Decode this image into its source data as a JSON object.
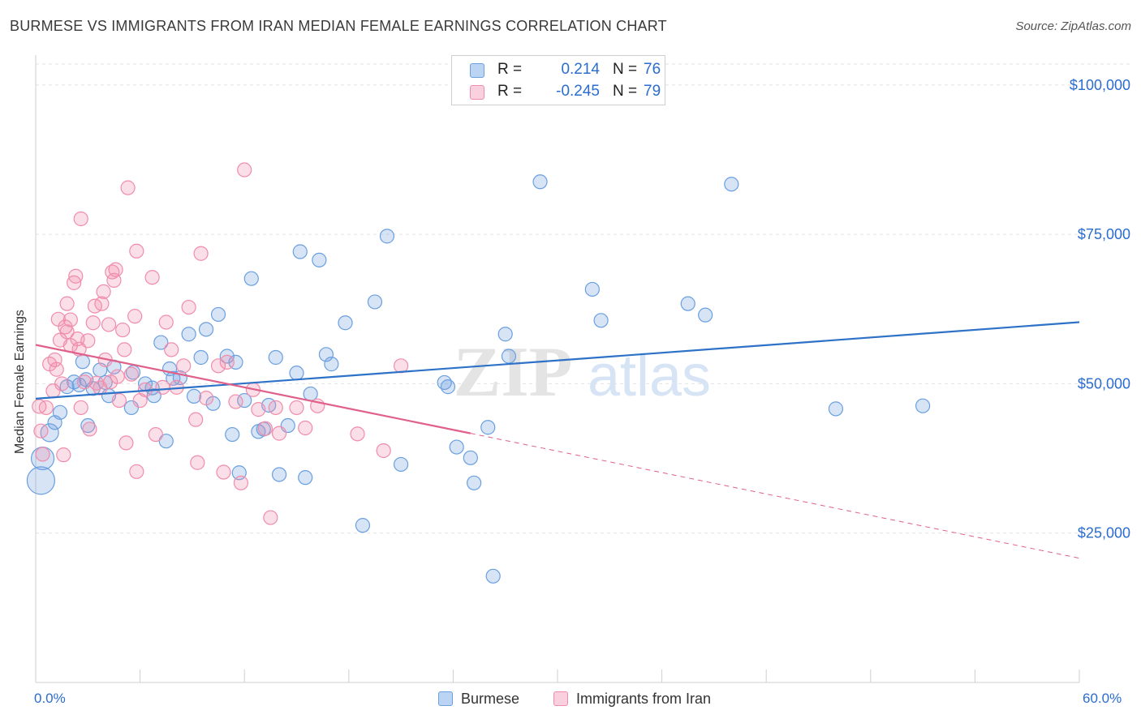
{
  "title": "BURMESE VS IMMIGRANTS FROM IRAN MEDIAN FEMALE EARNINGS CORRELATION CHART",
  "source": "Source: ZipAtlas.com",
  "watermark": {
    "zip": "ZIP",
    "atlas": "atlas"
  },
  "legend_top": [
    {
      "r_label": "R =",
      "r_value": "0.214",
      "n_label": "N =",
      "n_value": "76"
    },
    {
      "r_label": "R =",
      "r_value": "-0.245",
      "n_label": "N =",
      "n_value": "79"
    }
  ],
  "legend_bottom": [
    "Burmese",
    "Immigrants from Iran"
  ],
  "x_min_label": "0.0%",
  "x_max_label": "60.0%",
  "chart_data": {
    "type": "scatter",
    "title": "BURMESE VS IMMIGRANTS FROM IRAN MEDIAN FEMALE EARNINGS CORRELATION CHART",
    "xlabel": "",
    "ylabel": "Median Female Earnings",
    "xlim": [
      0,
      60
    ],
    "ylim": [
      0,
      105000
    ],
    "y_ticks": [
      25000,
      50000,
      75000,
      100000
    ],
    "y_tick_labels": [
      "$25,000",
      "$50,000",
      "$75,000",
      "$100,000"
    ],
    "x_tick_labels": [
      "0.0%",
      "60.0%"
    ],
    "grid": true,
    "legend_position": "top-center and bottom",
    "colors": {
      "burmese": "#6a9fe0",
      "iran": "#f08cab",
      "burmese_line": "#2e72c8",
      "iran_line": "#e0608a"
    },
    "series": [
      {
        "name": "Burmese",
        "color": "#6a9fe0",
        "trend": {
          "x": [
            0,
            60
          ],
          "y": [
            47500,
            60300
          ],
          "dashed_from": null
        },
        "points": [
          [
            0.3,
            33800
          ],
          [
            0.4,
            37500
          ],
          [
            0.8,
            41800
          ],
          [
            1.1,
            43500
          ],
          [
            1.4,
            45200
          ],
          [
            1.8,
            49500
          ],
          [
            2.2,
            50300
          ],
          [
            2.5,
            49800
          ],
          [
            2.7,
            53700
          ],
          [
            2.9,
            50700
          ],
          [
            3.0,
            43000
          ],
          [
            3.3,
            49200
          ],
          [
            3.7,
            52300
          ],
          [
            4.0,
            50200
          ],
          [
            4.2,
            48000
          ],
          [
            4.5,
            52800
          ],
          [
            5.5,
            46000
          ],
          [
            5.6,
            51900
          ],
          [
            6.3,
            50000
          ],
          [
            6.7,
            49300
          ],
          [
            6.8,
            48000
          ],
          [
            7.2,
            56900
          ],
          [
            7.5,
            40400
          ],
          [
            7.7,
            52500
          ],
          [
            7.9,
            50900
          ],
          [
            8.3,
            51000
          ],
          [
            8.8,
            58300
          ],
          [
            9.1,
            47900
          ],
          [
            9.5,
            54400
          ],
          [
            9.8,
            59100
          ],
          [
            10.2,
            46700
          ],
          [
            10.5,
            61600
          ],
          [
            11.0,
            54600
          ],
          [
            11.3,
            41500
          ],
          [
            11.5,
            53600
          ],
          [
            11.7,
            35100
          ],
          [
            12.0,
            47200
          ],
          [
            12.4,
            67600
          ],
          [
            12.8,
            42000
          ],
          [
            13.1,
            42400
          ],
          [
            13.4,
            46400
          ],
          [
            13.8,
            54400
          ],
          [
            14.0,
            34800
          ],
          [
            14.5,
            43000
          ],
          [
            15.0,
            51800
          ],
          [
            15.2,
            72100
          ],
          [
            15.5,
            34300
          ],
          [
            15.8,
            48300
          ],
          [
            16.3,
            70700
          ],
          [
            16.7,
            54900
          ],
          [
            17.0,
            53300
          ],
          [
            17.8,
            60200
          ],
          [
            18.8,
            26300
          ],
          [
            19.5,
            63700
          ],
          [
            20.2,
            74700
          ],
          [
            21.0,
            36500
          ],
          [
            23.5,
            50200
          ],
          [
            23.7,
            49500
          ],
          [
            24.2,
            39400
          ],
          [
            25.0,
            37600
          ],
          [
            25.2,
            33400
          ],
          [
            26.0,
            42700
          ],
          [
            26.3,
            17800
          ],
          [
            27.0,
            58300
          ],
          [
            27.2,
            54600
          ],
          [
            29.0,
            83800
          ],
          [
            32.0,
            65800
          ],
          [
            32.5,
            60600
          ],
          [
            37.5,
            63400
          ],
          [
            38.5,
            61500
          ],
          [
            40.0,
            83400
          ],
          [
            46.0,
            45800
          ],
          [
            51.0,
            46300
          ]
        ]
      },
      {
        "name": "Immigrants from Iran",
        "color": "#f08cab",
        "trend": {
          "x": [
            0,
            25
          ],
          "y": [
            56500,
            41700
          ],
          "dashed_to": [
            60,
            20800
          ]
        },
        "points": [
          [
            0.2,
            46200
          ],
          [
            0.3,
            42100
          ],
          [
            0.4,
            38200
          ],
          [
            0.6,
            46000
          ],
          [
            0.8,
            53300
          ],
          [
            1.0,
            48800
          ],
          [
            1.1,
            54000
          ],
          [
            1.2,
            52400
          ],
          [
            1.3,
            60800
          ],
          [
            1.4,
            57300
          ],
          [
            1.5,
            50000
          ],
          [
            1.6,
            38100
          ],
          [
            1.7,
            59500
          ],
          [
            1.8,
            58700
          ],
          [
            1.8,
            63400
          ],
          [
            2.0,
            56400
          ],
          [
            2.0,
            60700
          ],
          [
            2.2,
            66900
          ],
          [
            2.3,
            68000
          ],
          [
            2.4,
            57500
          ],
          [
            2.5,
            55800
          ],
          [
            2.6,
            46000
          ],
          [
            2.6,
            77600
          ],
          [
            2.8,
            50300
          ],
          [
            3.0,
            57200
          ],
          [
            3.1,
            42400
          ],
          [
            3.3,
            60200
          ],
          [
            3.4,
            63000
          ],
          [
            3.5,
            50100
          ],
          [
            3.7,
            49300
          ],
          [
            3.8,
            63400
          ],
          [
            3.9,
            65400
          ],
          [
            4.0,
            54000
          ],
          [
            4.2,
            59900
          ],
          [
            4.3,
            50300
          ],
          [
            4.4,
            68700
          ],
          [
            4.5,
            67300
          ],
          [
            4.6,
            69100
          ],
          [
            4.7,
            51200
          ],
          [
            4.8,
            47200
          ],
          [
            5.0,
            59000
          ],
          [
            5.1,
            55700
          ],
          [
            5.2,
            40100
          ],
          [
            5.3,
            82800
          ],
          [
            5.5,
            51600
          ],
          [
            5.7,
            61300
          ],
          [
            5.8,
            35300
          ],
          [
            5.8,
            72200
          ],
          [
            6.0,
            47200
          ],
          [
            6.3,
            49000
          ],
          [
            6.7,
            67800
          ],
          [
            6.9,
            41500
          ],
          [
            7.3,
            49400
          ],
          [
            7.5,
            60300
          ],
          [
            7.8,
            55700
          ],
          [
            8.1,
            49400
          ],
          [
            8.5,
            53000
          ],
          [
            8.8,
            62800
          ],
          [
            9.2,
            44000
          ],
          [
            9.3,
            36800
          ],
          [
            9.5,
            71800
          ],
          [
            9.8,
            47600
          ],
          [
            10.5,
            53000
          ],
          [
            10.8,
            35200
          ],
          [
            11.0,
            53600
          ],
          [
            11.5,
            47000
          ],
          [
            11.8,
            33400
          ],
          [
            12.0,
            85800
          ],
          [
            12.5,
            49000
          ],
          [
            12.8,
            45700
          ],
          [
            13.2,
            42500
          ],
          [
            13.5,
            27600
          ],
          [
            13.8,
            46000
          ],
          [
            14.0,
            41700
          ],
          [
            15.0,
            46000
          ],
          [
            15.5,
            42600
          ],
          [
            16.2,
            46300
          ],
          [
            18.5,
            41600
          ],
          [
            20.0,
            38800
          ],
          [
            21.0,
            53000
          ]
        ]
      }
    ]
  }
}
